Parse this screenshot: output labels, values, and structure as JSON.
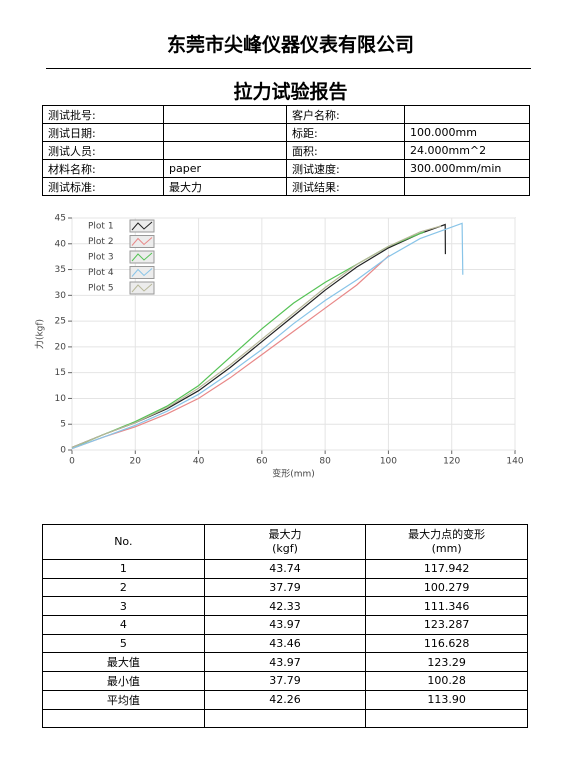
{
  "header": {
    "company": "东莞市尖峰仪器仪表有限公司",
    "title": "拉力试验报告"
  },
  "info_table": {
    "rows": [
      [
        "测试批号:",
        null,
        "客户名称:",
        null
      ],
      [
        "测试日期:",
        null,
        "标距:",
        "100.000mm"
      ],
      [
        "测试人员:",
        null,
        "面积:",
        "24.000mm^2"
      ],
      [
        "材料名称:",
        "paper",
        "测试速度:",
        "300.000mm/min"
      ],
      [
        "测试标准:",
        "最大力",
        "测试结果:",
        null
      ]
    ]
  },
  "chart_data": {
    "type": "line",
    "xlabel": "变形(mm)",
    "ylabel": "力(kgf)",
    "xlim": [
      0,
      140
    ],
    "ylim": [
      0,
      45
    ],
    "xticks": [
      0,
      20,
      40,
      60,
      80,
      100,
      120,
      140
    ],
    "yticks": [
      0,
      5,
      10,
      15,
      20,
      25,
      30,
      35,
      40,
      45
    ],
    "grid": true,
    "legend": "upper left",
    "series": [
      {
        "name": "Plot 1",
        "color": "#222222",
        "x": [
          0,
          10,
          20,
          30,
          40,
          50,
          60,
          70,
          80,
          90,
          100,
          110,
          117.942,
          118
        ],
        "y": [
          0.5,
          3,
          5.3,
          8,
          11.5,
          16,
          21,
          26,
          31,
          35.5,
          39.2,
          42,
          43.74,
          38
        ]
      },
      {
        "name": "Plot 2",
        "color": "#e88888",
        "x": [
          0,
          10,
          20,
          30,
          40,
          50,
          60,
          70,
          80,
          90,
          100.279
        ],
        "y": [
          0.3,
          2.5,
          4.5,
          7,
          10,
          14,
          18.5,
          23,
          27.5,
          32,
          37.79
        ]
      },
      {
        "name": "Plot 3",
        "color": "#55c255",
        "x": [
          0,
          10,
          20,
          30,
          40,
          50,
          60,
          70,
          80,
          90,
          100,
          111.346
        ],
        "y": [
          0.4,
          3,
          5.5,
          8.5,
          12.5,
          18,
          23.5,
          28.5,
          32.5,
          36,
          39.5,
          42.33
        ]
      },
      {
        "name": "Plot 4",
        "color": "#88c4e8",
        "x": [
          0,
          10,
          20,
          30,
          40,
          50,
          60,
          70,
          80,
          90,
          100,
          110,
          123.287,
          123.5
        ],
        "y": [
          0.3,
          2.5,
          4.8,
          7.5,
          10.8,
          15,
          19.5,
          24.5,
          29,
          33,
          37.5,
          41,
          43.97,
          34
        ]
      },
      {
        "name": "Plot 5",
        "color": "#b8b89a",
        "x": [
          0,
          10,
          20,
          30,
          40,
          50,
          60,
          70,
          80,
          90,
          100,
          110,
          116.628
        ],
        "y": [
          0.5,
          3,
          5.3,
          8.2,
          12,
          16.5,
          21.5,
          26.5,
          31.5,
          36,
          39.5,
          42.3,
          43.46
        ]
      }
    ]
  },
  "result_table": {
    "columns": [
      {
        "name": "No."
      },
      {
        "name": "最大力",
        "unit": "(kgf)"
      },
      {
        "name": "最大力点的变形",
        "unit": "(mm)"
      }
    ],
    "rows": [
      [
        "1",
        "43.74",
        "117.942"
      ],
      [
        "2",
        "37.79",
        "100.279"
      ],
      [
        "3",
        "42.33",
        "111.346"
      ],
      [
        "4",
        "43.97",
        "123.287"
      ],
      [
        "5",
        "43.46",
        "116.628"
      ],
      [
        "最大值",
        "43.97",
        "123.29"
      ],
      [
        "最小值",
        "37.79",
        "100.28"
      ],
      [
        "平均值",
        "42.26",
        "113.90"
      ]
    ]
  }
}
